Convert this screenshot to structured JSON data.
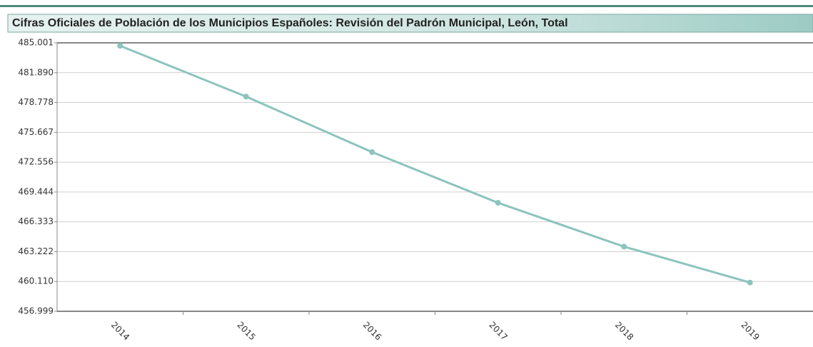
{
  "chart_data": {
    "type": "line",
    "title": "Cifras Oficiales de Población de los Municipios Españoles: Revisión del Padrón Municipal, León, Total",
    "categories": [
      "2014",
      "2015",
      "2016",
      "2017",
      "2018",
      "2019"
    ],
    "series": [
      {
        "name": "León, Total",
        "color": "#8cc4bd",
        "values": [
          484694,
          479395,
          473604,
          468316,
          463746,
          460001
        ]
      }
    ],
    "ylim": [
      456999,
      485001
    ],
    "yticks": [
      {
        "value": 485001,
        "label": "485.001"
      },
      {
        "value": 481890,
        "label": "481.890"
      },
      {
        "value": 478778,
        "label": "478.778"
      },
      {
        "value": 475667,
        "label": "475.667"
      },
      {
        "value": 472556,
        "label": "472.556"
      },
      {
        "value": 469444,
        "label": "469.444"
      },
      {
        "value": 466333,
        "label": "466.333"
      },
      {
        "value": 463222,
        "label": "463.222"
      },
      {
        "value": 460110,
        "label": "460.110"
      },
      {
        "value": 456999,
        "label": "456.999"
      }
    ],
    "grid": true
  }
}
